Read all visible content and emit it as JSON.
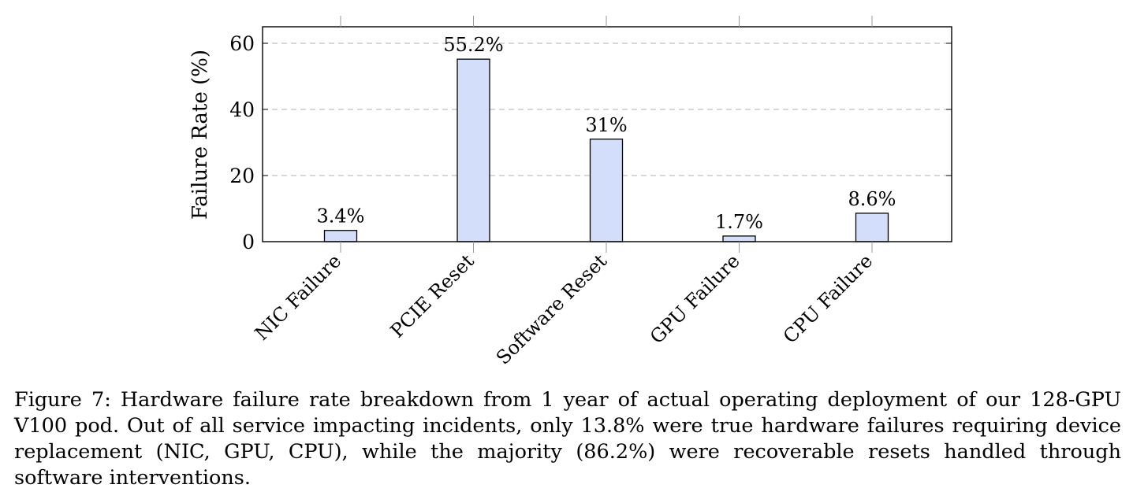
{
  "chart_data": {
    "type": "bar",
    "categories": [
      "NIC Failure",
      "PCIE Reset",
      "Software Reset",
      "GPU Failure",
      "CPU Failure"
    ],
    "values": [
      3.4,
      55.2,
      31,
      1.7,
      8.6
    ],
    "data_labels": [
      "3.4%",
      "55.2%",
      "31%",
      "1.7%",
      "8.6%"
    ],
    "ylabel": "Failure Rate (%)",
    "xlabel": "",
    "ylim": [
      0,
      65
    ],
    "yticks": [
      0,
      20,
      40,
      60
    ],
    "grid": "horizontal dashed",
    "legend": "none",
    "bar_color": "#d2defa",
    "bar_stroke": "#000000",
    "grid_color": "#b0b0b0"
  },
  "caption": {
    "label": "Figure 7:",
    "text": "Hardware failure rate breakdown from 1 year of actual operating deployment of our 128-GPU V100 pod. Out of all service impacting incidents, only 13.8% were true hardware failures requiring device replacement (NIC, GPU, CPU), while the majority (86.2%) were recoverable resets handled through software interventions."
  }
}
